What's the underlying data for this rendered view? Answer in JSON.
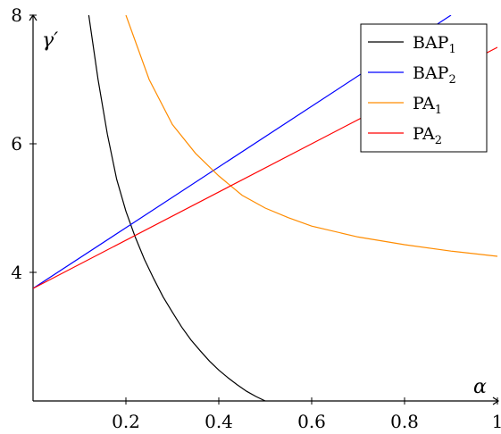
{
  "chart_data": {
    "type": "line",
    "xlabel": "α",
    "ylabel": "γ′",
    "xlim": [
      0,
      1
    ],
    "ylim": [
      2,
      8
    ],
    "x_ticks": [
      "0.2",
      "0.4",
      "0.6",
      "0.8",
      "1"
    ],
    "y_ticks": [
      "4",
      "6",
      "8"
    ],
    "grid": false,
    "legend_position": "top-right",
    "series": [
      {
        "name": "BAP",
        "subscript": "1",
        "color": "#000000",
        "x": [
          0.12,
          0.14,
          0.16,
          0.18,
          0.2,
          0.22,
          0.24,
          0.26,
          0.28,
          0.3,
          0.32,
          0.34,
          0.36,
          0.38,
          0.4,
          0.42,
          0.44,
          0.46,
          0.48,
          0.5
        ],
        "y": [
          8.0,
          7.0,
          6.15,
          5.45,
          4.95,
          4.55,
          4.2,
          3.9,
          3.62,
          3.38,
          3.15,
          2.95,
          2.78,
          2.62,
          2.48,
          2.36,
          2.25,
          2.15,
          2.07,
          2.0
        ]
      },
      {
        "name": "BAP",
        "subscript": "2",
        "color": "#0000ff",
        "x": [
          0,
          0.9
        ],
        "y": [
          3.75,
          8.0
        ]
      },
      {
        "name": "PA",
        "subscript": "1",
        "color": "#ff8c00",
        "x": [
          0.2,
          0.25,
          0.3,
          0.35,
          0.4,
          0.45,
          0.5,
          0.55,
          0.6,
          0.7,
          0.8,
          0.9,
          1.0
        ],
        "y": [
          8.0,
          7.0,
          6.3,
          5.85,
          5.5,
          5.2,
          5.0,
          4.85,
          4.72,
          4.55,
          4.43,
          4.33,
          4.25
        ]
      },
      {
        "name": "PA",
        "subscript": "2",
        "color": "#ff0000",
        "x": [
          0,
          1
        ],
        "y": [
          3.75,
          7.5
        ]
      }
    ]
  }
}
